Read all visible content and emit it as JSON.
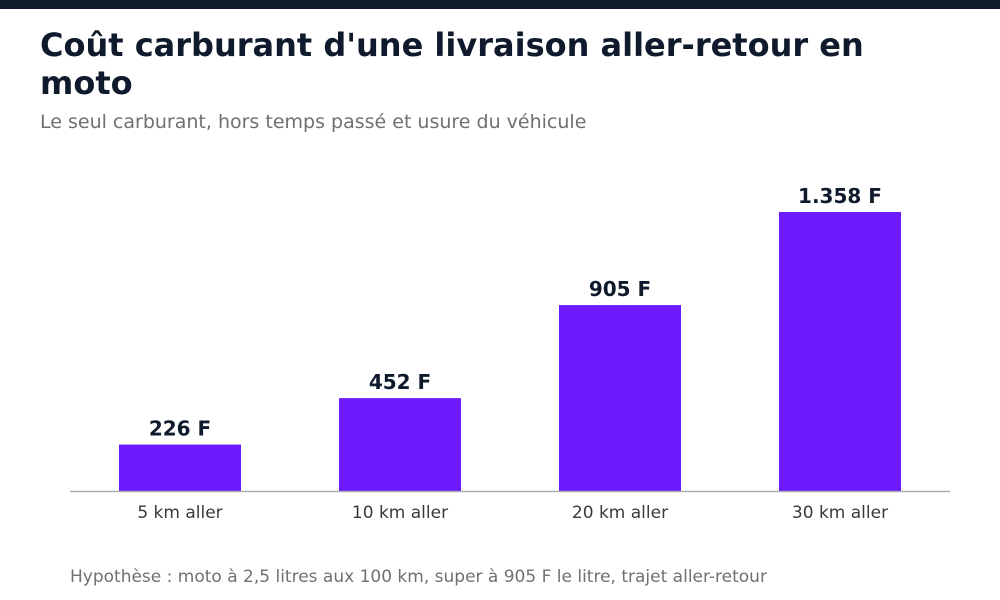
{
  "header": {
    "title": "Coût carburant d'une livraison aller-retour en moto",
    "subtitle": "Le seul carburant, hors temps passé et usure du véhicule"
  },
  "footnote": "Hypothèse : moto à 2,5 litres aux 100 km, super à 905 F le litre, trajet aller-retour",
  "colors": {
    "bar": "#6c1bff",
    "value_label": "#0f1b2d",
    "tick_label": "#3a3a3a",
    "baseline": "#aaaaaa"
  },
  "chart_data": {
    "type": "bar",
    "title": "Coût carburant d'une livraison aller-retour en moto",
    "subtitle": "Le seul carburant, hors temps passé et usure du véhicule",
    "categories": [
      "5 km aller",
      "10 km aller",
      "20 km aller",
      "30 km aller"
    ],
    "values": [
      226,
      452,
      905,
      1358
    ],
    "value_labels": [
      "226 F",
      "452 F",
      "905 F",
      "1.358 F"
    ],
    "xlabel": "",
    "ylabel": "",
    "ylim": [
      0,
      1500
    ],
    "grid": false,
    "legend": "none"
  }
}
